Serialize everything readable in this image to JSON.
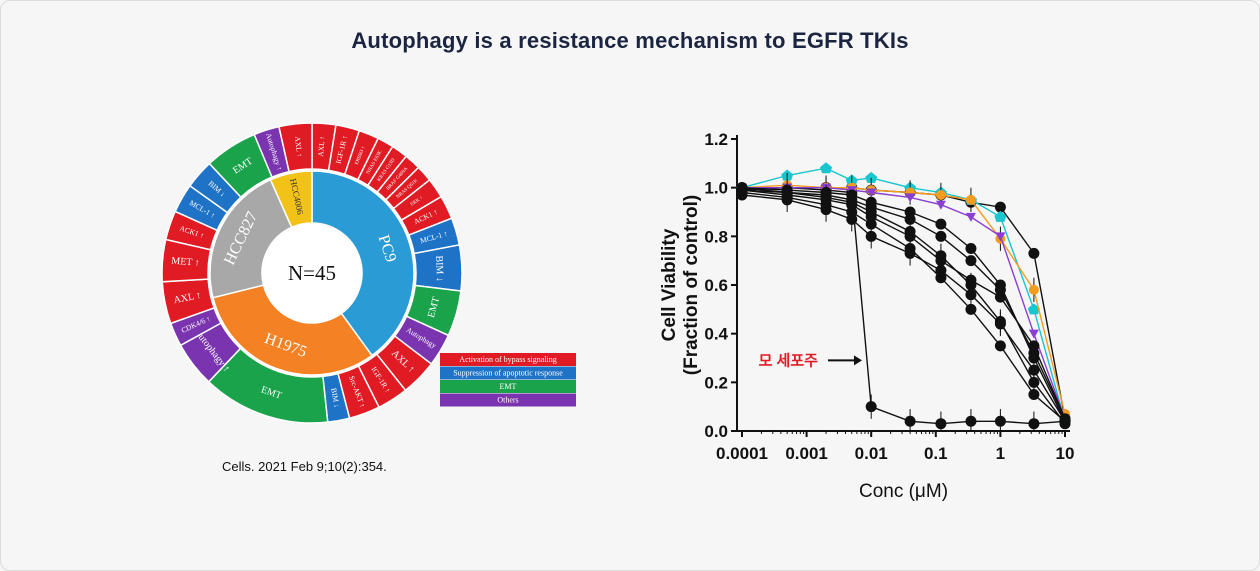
{
  "title": "Autophagy is a resistance mechanism to EGFR TKIs",
  "citation": "Cells. 2021 Feb 9;10(2):354.",
  "colors": {
    "bypass": "#e01b24",
    "apoptotic": "#1f73c6",
    "emt": "#1aa34a",
    "others": "#7a34b0",
    "pc9": "#2b9bd6",
    "h1975": "#f48124",
    "hcc827": "#a8a8a8",
    "hcc4006": "#f2c219"
  },
  "donut": {
    "center_label": "N=45",
    "inner": [
      {
        "label": "PC9",
        "value": 18,
        "color": "#2b9bd6"
      },
      {
        "label": "H1975",
        "value": 14,
        "color": "#f48124"
      },
      {
        "label": "HCC827",
        "value": 10,
        "color": "#a8a8a8"
      },
      {
        "label": "HCC4006",
        "value": 3,
        "color": "#f2c219"
      }
    ],
    "outer": [
      {
        "label": "AXL ↑",
        "value": 1.3,
        "color": "#e01b24"
      },
      {
        "label": "IGF-1R ↑",
        "value": 1.3,
        "color": "#e01b24"
      },
      {
        "label": "ERBB3 ↑",
        "value": 1.1,
        "color": "#e01b24"
      },
      {
        "label": "NRAS E63K",
        "value": 0.9,
        "color": "#e01b24"
      },
      {
        "label": "KRAS G13D",
        "value": 0.9,
        "color": "#e01b24"
      },
      {
        "label": "BRAF G469A",
        "value": 0.9,
        "color": "#e01b24"
      },
      {
        "label": "NRAS Q61K",
        "value": 0.9,
        "color": "#e01b24"
      },
      {
        "label": "ERK ↑",
        "value": 1.1,
        "color": "#e01b24"
      },
      {
        "label": "ACK1 ↑",
        "value": 1.3,
        "color": "#e01b24"
      },
      {
        "label": "MCL-1 ↑",
        "value": 1.5,
        "color": "#1f73c6"
      },
      {
        "label": "BIM ↓",
        "value": 2.5,
        "color": "#1f73c6"
      },
      {
        "label": "EMT",
        "value": 2.5,
        "color": "#1aa34a"
      },
      {
        "label": "Autophagy",
        "value": 1.8,
        "color": "#7a34b0"
      },
      {
        "label": "AXL ↑",
        "value": 2.0,
        "color": "#e01b24"
      },
      {
        "label": "IGF-1R ↑",
        "value": 1.7,
        "color": "#e01b24"
      },
      {
        "label": "Src-AKT ↑",
        "value": 1.7,
        "color": "#e01b24"
      },
      {
        "label": "BIM ↓",
        "value": 1.2,
        "color": "#1f73c6"
      },
      {
        "label": "EMT",
        "value": 7.0,
        "color": "#1aa34a"
      },
      {
        "label": "Autophagy ↑",
        "value": 2.5,
        "color": "#7a34b0"
      },
      {
        "label": "CDK4/6 ↑",
        "value": 1.3,
        "color": "#7a34b0"
      },
      {
        "label": "AXL ↑",
        "value": 2.3,
        "color": "#e01b24"
      },
      {
        "label": "MET ↑",
        "value": 2.3,
        "color": "#e01b24"
      },
      {
        "label": "ACK1 ↑",
        "value": 1.6,
        "color": "#e01b24"
      },
      {
        "label": "MCL-1 ↑",
        "value": 1.6,
        "color": "#1f73c6"
      },
      {
        "label": "BIM ↓",
        "value": 1.6,
        "color": "#1f73c6"
      },
      {
        "label": "EMT",
        "value": 2.9,
        "color": "#1aa34a"
      },
      {
        "label": "Autophagy ↑",
        "value": 1.4,
        "color": "#7a34b0"
      },
      {
        "label": "AXL ↑",
        "value": 1.8,
        "color": "#e01b24"
      }
    ],
    "legend": [
      {
        "label": "Activation of bypass signaling",
        "color": "#e01b24"
      },
      {
        "label": "Suppression of apoptotic response",
        "color": "#1f73c6"
      },
      {
        "label": "EMT",
        "color": "#1aa34a"
      },
      {
        "label": "Others",
        "color": "#7a34b0"
      }
    ]
  },
  "chart_data": {
    "type": "line",
    "xlabel": "Conc (μM)",
    "ylabel": "Cell Viability (Fraction of control)",
    "x_scale": "log",
    "xlim": [
      0.0001,
      10
    ],
    "ylim": [
      0,
      1.2
    ],
    "x_ticks": [
      "0.0001",
      "0.001",
      "0.01",
      "0.1",
      "1",
      "10"
    ],
    "y_ticks": [
      "0.0",
      "0.2",
      "0.4",
      "0.6",
      "0.8",
      "1.0",
      "1.2"
    ],
    "x": [
      0.0001,
      0.0005,
      0.002,
      0.005,
      0.01,
      0.04,
      0.12,
      0.35,
      1,
      3.3,
      10
    ],
    "annotation": "모 세포주",
    "series": [
      {
        "values": [
          0.99,
          1.0,
          0.99,
          0.98,
          0.1,
          0.04,
          0.03,
          0.04,
          0.04,
          0.03,
          0.04
        ],
        "color": "#111111"
      },
      {
        "values": [
          1.0,
          1.0,
          1.0,
          1.0,
          0.99,
          0.98,
          0.97,
          0.94,
          0.92,
          0.73,
          0.05
        ],
        "color": "#111111"
      },
      {
        "values": [
          1.0,
          1.05,
          1.08,
          1.03,
          1.04,
          1.0,
          0.98,
          0.95,
          0.88,
          0.5,
          0.04
        ],
        "color": "#17c6cf"
      },
      {
        "values": [
          1.0,
          1.01,
          1.0,
          1.0,
          0.99,
          0.98,
          0.97,
          0.95,
          0.79,
          0.58,
          0.07
        ],
        "color": "#f39c1f"
      },
      {
        "values": [
          1.0,
          1.0,
          1.0,
          0.99,
          0.98,
          0.96,
          0.93,
          0.88,
          0.8,
          0.4,
          0.05
        ],
        "color": "#8a3fd1"
      },
      {
        "values": [
          1.0,
          0.99,
          0.98,
          0.97,
          0.94,
          0.9,
          0.85,
          0.75,
          0.6,
          0.3,
          0.04
        ],
        "color": "#111111"
      },
      {
        "values": [
          0.99,
          0.98,
          0.96,
          0.94,
          0.9,
          0.82,
          0.72,
          0.6,
          0.45,
          0.2,
          0.03
        ],
        "color": "#111111"
      },
      {
        "values": [
          0.98,
          0.96,
          0.93,
          0.9,
          0.85,
          0.75,
          0.63,
          0.5,
          0.35,
          0.15,
          0.04
        ],
        "color": "#111111"
      },
      {
        "values": [
          0.99,
          0.97,
          0.95,
          0.93,
          0.88,
          0.8,
          0.7,
          0.62,
          0.55,
          0.35,
          0.05
        ],
        "color": "#111111"
      },
      {
        "values": [
          0.97,
          0.95,
          0.91,
          0.87,
          0.8,
          0.73,
          0.66,
          0.56,
          0.44,
          0.25,
          0.04
        ],
        "color": "#111111"
      },
      {
        "values": [
          1.0,
          0.98,
          0.97,
          0.95,
          0.92,
          0.87,
          0.8,
          0.7,
          0.58,
          0.32,
          0.05
        ],
        "color": "#111111"
      }
    ]
  }
}
